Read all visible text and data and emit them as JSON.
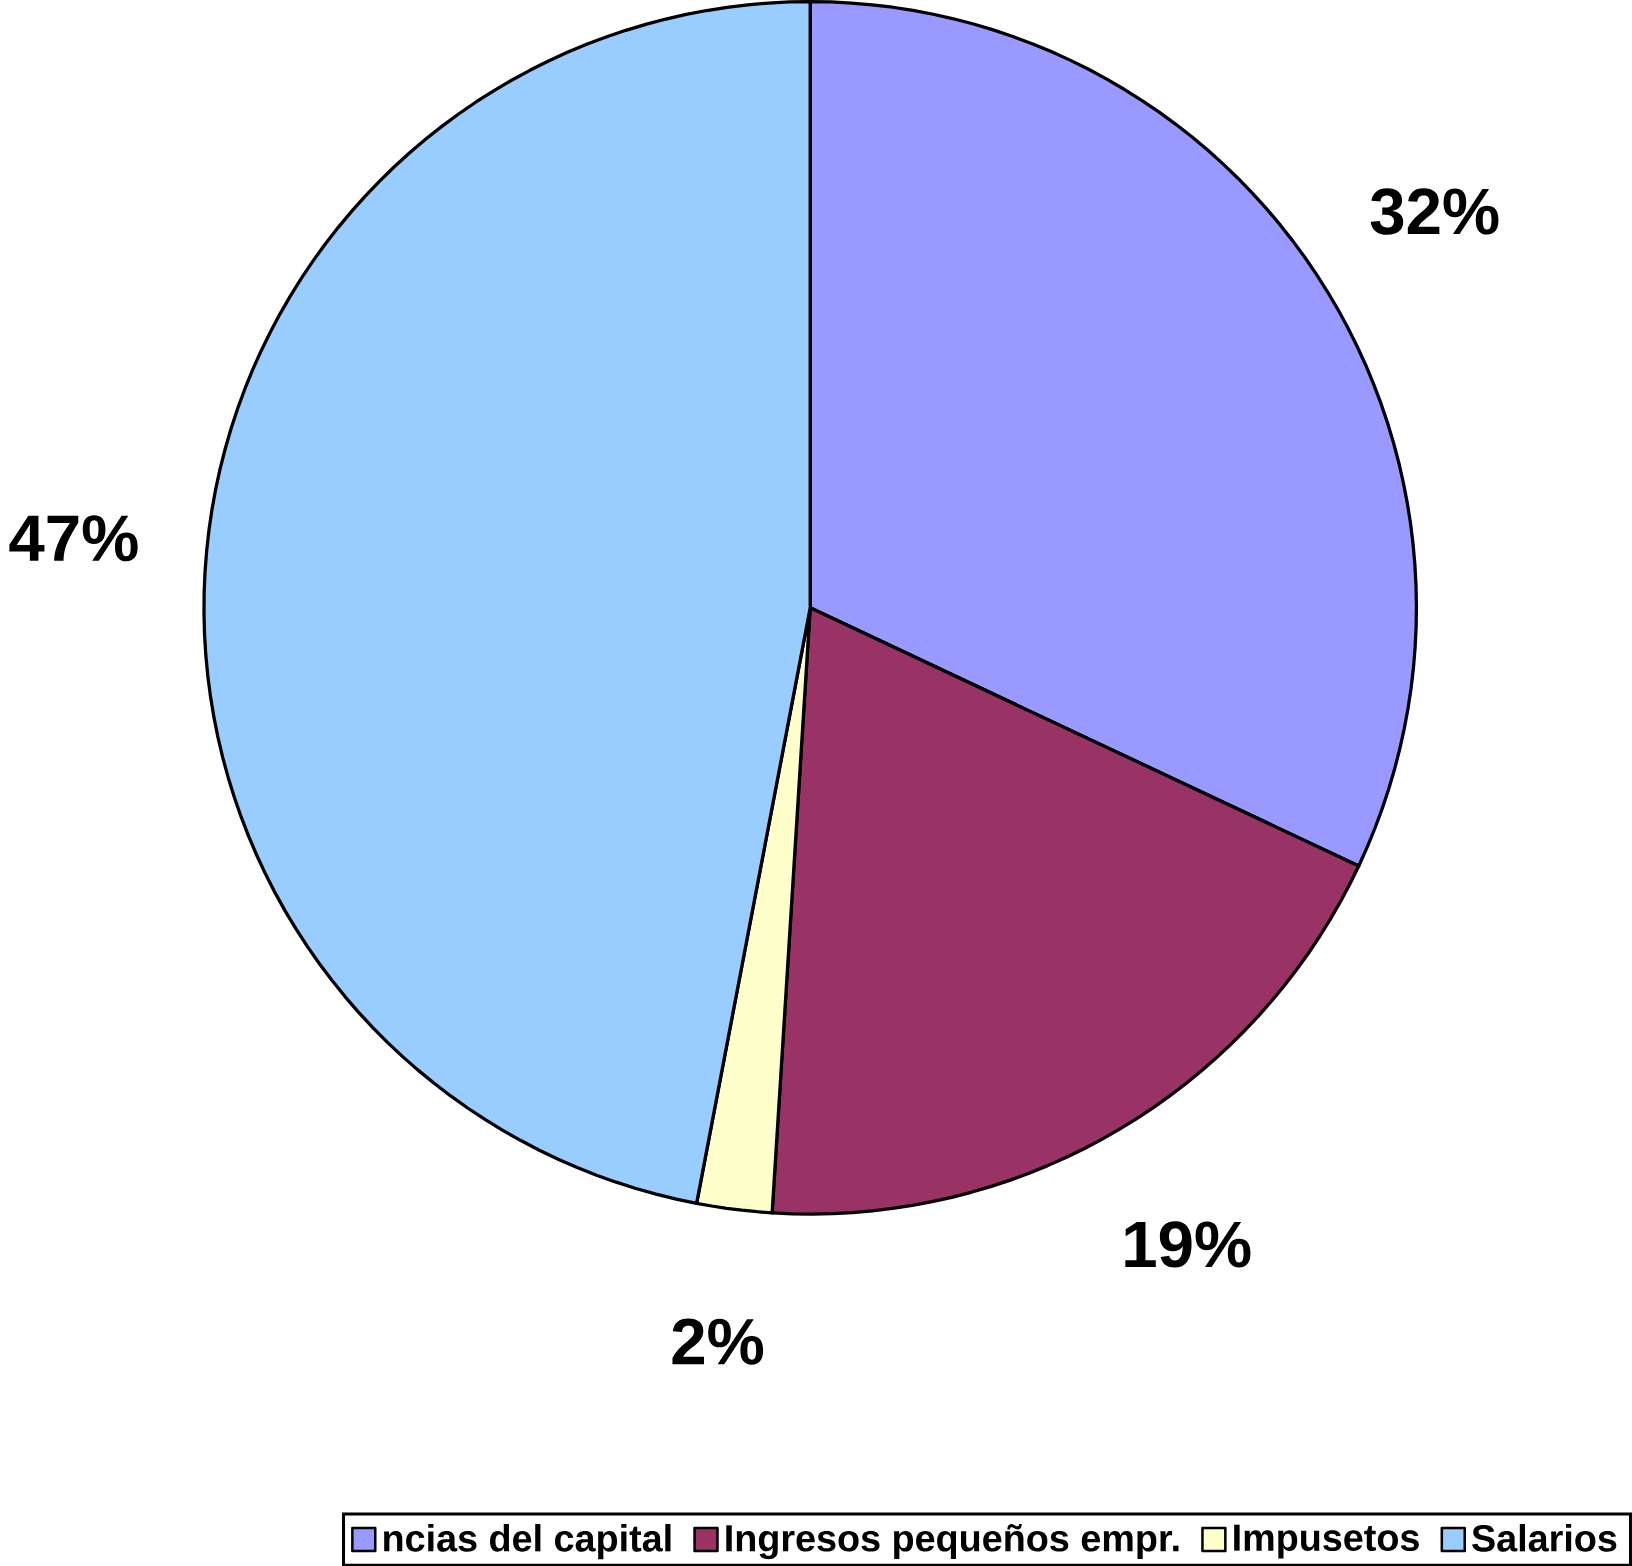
{
  "chart_data": {
    "type": "pie",
    "categories": [
      "ncias del capital",
      "Ingresos pequeños empr.",
      "Impusetos",
      "Salarios"
    ],
    "values": [
      32,
      19,
      2,
      47
    ],
    "colors": [
      "#9999ff",
      "#993366",
      "#ffffcc",
      "#99ccff"
    ],
    "value_labels": [
      "32%",
      "19%",
      "2%",
      "47%"
    ],
    "legend": "bottom"
  }
}
